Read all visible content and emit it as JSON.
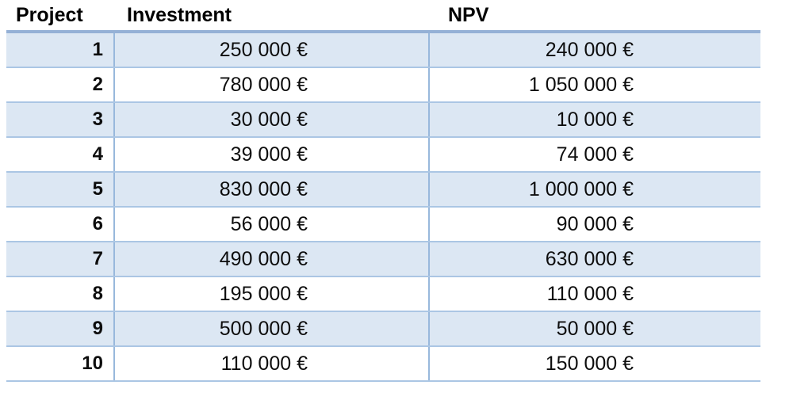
{
  "table": {
    "headers": [
      {
        "label": "Project"
      },
      {
        "label": "Investment"
      },
      {
        "label": "NPV"
      }
    ],
    "rows": [
      {
        "project": "1",
        "investment": "250 000 €",
        "npv": "240 000 €"
      },
      {
        "project": "2",
        "investment": "780 000 €",
        "npv": "1 050 000 €"
      },
      {
        "project": "3",
        "investment": "30 000 €",
        "npv": "10 000 €"
      },
      {
        "project": "4",
        "investment": "39 000 €",
        "npv": "74 000 €"
      },
      {
        "project": "5",
        "investment": "830 000 €",
        "npv": "1 000 000 €"
      },
      {
        "project": "6",
        "investment": "56 000 €",
        "npv": "90 000 €"
      },
      {
        "project": "7",
        "investment": "490 000 €",
        "npv": "630 000 €"
      },
      {
        "project": "8",
        "investment": "195 000 €",
        "npv": "110 000 €"
      },
      {
        "project": "9",
        "investment": "500 000 €",
        "npv": "50 000 €"
      },
      {
        "project": "10",
        "investment": "110 000 €",
        "npv": "150 000 €"
      }
    ],
    "colors": {
      "band_fill": "#dce7f3",
      "top_border": "#95b1d6",
      "row_line": "#abc6e4",
      "column_line": "#98b8dc",
      "header_text": "#000000",
      "value_text": "#0d0d0d"
    },
    "currency_symbol": "€"
  }
}
